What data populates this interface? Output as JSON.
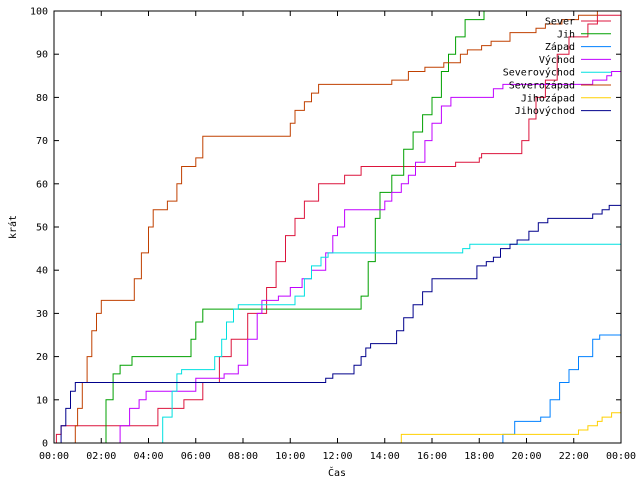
{
  "chart_data": {
    "type": "line",
    "step": true,
    "xlabel": "Čas",
    "ylabel": "krát",
    "xlim": [
      0,
      24
    ],
    "ylim": [
      0,
      100
    ],
    "x_ticks": [
      {
        "v": 0,
        "label": "00:00"
      },
      {
        "v": 2,
        "label": "02:00"
      },
      {
        "v": 4,
        "label": "04:00"
      },
      {
        "v": 6,
        "label": "06:00"
      },
      {
        "v": 8,
        "label": "08:00"
      },
      {
        "v": 10,
        "label": "10:00"
      },
      {
        "v": 12,
        "label": "12:00"
      },
      {
        "v": 14,
        "label": "14:00"
      },
      {
        "v": 16,
        "label": "16:00"
      },
      {
        "v": 18,
        "label": "18:00"
      },
      {
        "v": 20,
        "label": "20:00"
      },
      {
        "v": 22,
        "label": "22:00"
      },
      {
        "v": 24,
        "label": "00:00"
      }
    ],
    "y_ticks": [
      0,
      10,
      20,
      30,
      40,
      50,
      60,
      70,
      80,
      90,
      100
    ],
    "grid": false,
    "legend_position": "top-right",
    "series": [
      {
        "name": "Sever",
        "color": "#dc143c",
        "points": [
          [
            0,
            0
          ],
          [
            0.1,
            2
          ],
          [
            0.3,
            4
          ],
          [
            4.3,
            4
          ],
          [
            4.4,
            8
          ],
          [
            5.5,
            10
          ],
          [
            6.2,
            10
          ],
          [
            6.3,
            14
          ],
          [
            7.0,
            20
          ],
          [
            7.5,
            24
          ],
          [
            8.2,
            30
          ],
          [
            9.0,
            36
          ],
          [
            9.4,
            42
          ],
          [
            9.8,
            48
          ],
          [
            10.2,
            52
          ],
          [
            10.6,
            56
          ],
          [
            11.2,
            60
          ],
          [
            12.3,
            62
          ],
          [
            13.0,
            64
          ],
          [
            16.8,
            64
          ],
          [
            17.0,
            65
          ],
          [
            18.0,
            66
          ],
          [
            18.1,
            67
          ],
          [
            19.6,
            67
          ],
          [
            19.8,
            70
          ],
          [
            20.1,
            75
          ],
          [
            20.4,
            80
          ],
          [
            20.8,
            84
          ],
          [
            21.3,
            90
          ],
          [
            21.8,
            94
          ],
          [
            22.6,
            97
          ],
          [
            23.0,
            99
          ],
          [
            23.5,
            99
          ],
          [
            24,
            100
          ]
        ]
      },
      {
        "name": "Jih",
        "color": "#00a000",
        "points": [
          [
            0,
            0
          ],
          [
            2.0,
            0
          ],
          [
            2.2,
            10
          ],
          [
            2.5,
            16
          ],
          [
            2.8,
            18
          ],
          [
            3.3,
            20
          ],
          [
            5.6,
            20
          ],
          [
            5.8,
            24
          ],
          [
            6.0,
            28
          ],
          [
            6.3,
            31
          ],
          [
            12.6,
            31
          ],
          [
            13.0,
            34
          ],
          [
            13.3,
            42
          ],
          [
            13.6,
            52
          ],
          [
            13.8,
            58
          ],
          [
            14.3,
            62
          ],
          [
            14.8,
            68
          ],
          [
            15.2,
            72
          ],
          [
            15.6,
            76
          ],
          [
            16.0,
            80
          ],
          [
            16.4,
            86
          ],
          [
            16.7,
            90
          ],
          [
            17.0,
            94
          ],
          [
            17.4,
            98
          ],
          [
            18.2,
            100
          ],
          [
            24,
            100
          ]
        ]
      },
      {
        "name": "Západ",
        "color": "#0080ff",
        "points": [
          [
            0,
            0
          ],
          [
            18.8,
            0
          ],
          [
            19.0,
            2
          ],
          [
            19.5,
            5
          ],
          [
            20.6,
            6
          ],
          [
            21.0,
            10
          ],
          [
            21.4,
            14
          ],
          [
            21.8,
            17
          ],
          [
            22.2,
            20
          ],
          [
            22.8,
            24
          ],
          [
            23.1,
            25
          ],
          [
            24,
            25
          ]
        ]
      },
      {
        "name": "Východ",
        "color": "#c000ff",
        "points": [
          [
            0,
            0
          ],
          [
            2.7,
            0
          ],
          [
            2.8,
            4
          ],
          [
            3.2,
            8
          ],
          [
            3.6,
            10
          ],
          [
            3.9,
            12
          ],
          [
            5.8,
            12
          ],
          [
            6.0,
            15
          ],
          [
            7.2,
            16
          ],
          [
            7.8,
            18
          ],
          [
            8.2,
            24
          ],
          [
            8.6,
            30
          ],
          [
            8.8,
            33
          ],
          [
            9.5,
            34
          ],
          [
            10.0,
            36
          ],
          [
            10.5,
            38
          ],
          [
            10.9,
            40
          ],
          [
            11.5,
            44
          ],
          [
            11.8,
            48
          ],
          [
            12.0,
            50
          ],
          [
            12.3,
            54
          ],
          [
            13.7,
            54
          ],
          [
            14.0,
            56
          ],
          [
            14.3,
            58
          ],
          [
            14.7,
            60
          ],
          [
            15.0,
            62
          ],
          [
            15.3,
            65
          ],
          [
            15.7,
            70
          ],
          [
            16.0,
            74
          ],
          [
            16.4,
            78
          ],
          [
            16.8,
            80
          ],
          [
            18.3,
            80
          ],
          [
            18.6,
            82
          ],
          [
            19.0,
            83
          ],
          [
            22.5,
            83
          ],
          [
            22.8,
            84
          ],
          [
            23.4,
            85
          ],
          [
            23.6,
            86
          ],
          [
            24,
            86
          ]
        ]
      },
      {
        "name": "Severovýchod",
        "color": "#00e0e0",
        "points": [
          [
            0,
            0
          ],
          [
            4.4,
            0
          ],
          [
            4.6,
            6
          ],
          [
            5.0,
            12
          ],
          [
            5.2,
            16
          ],
          [
            5.4,
            17
          ],
          [
            6.5,
            17
          ],
          [
            6.8,
            20
          ],
          [
            7.1,
            24
          ],
          [
            7.3,
            28
          ],
          [
            7.6,
            31
          ],
          [
            7.8,
            32
          ],
          [
            9.9,
            32
          ],
          [
            10.2,
            34
          ],
          [
            10.6,
            38
          ],
          [
            10.9,
            41
          ],
          [
            11.3,
            43
          ],
          [
            11.6,
            44
          ],
          [
            16.8,
            44
          ],
          [
            17.3,
            45
          ],
          [
            17.6,
            46
          ],
          [
            24,
            46
          ]
        ]
      },
      {
        "name": "Severozápad",
        "color": "#c04000",
        "points": [
          [
            0,
            0
          ],
          [
            0.8,
            0
          ],
          [
            0.9,
            4
          ],
          [
            1.0,
            8
          ],
          [
            1.2,
            14
          ],
          [
            1.4,
            20
          ],
          [
            1.6,
            26
          ],
          [
            1.8,
            30
          ],
          [
            2.0,
            33
          ],
          [
            3.2,
            33
          ],
          [
            3.4,
            38
          ],
          [
            3.7,
            44
          ],
          [
            4.0,
            50
          ],
          [
            4.2,
            54
          ],
          [
            4.8,
            56
          ],
          [
            5.2,
            60
          ],
          [
            5.4,
            64
          ],
          [
            6.0,
            66
          ],
          [
            6.3,
            71
          ],
          [
            9.8,
            71
          ],
          [
            10.0,
            74
          ],
          [
            10.2,
            77
          ],
          [
            10.6,
            79
          ],
          [
            10.9,
            81
          ],
          [
            11.2,
            83
          ],
          [
            13.8,
            83
          ],
          [
            14.3,
            84
          ],
          [
            15.0,
            86
          ],
          [
            15.7,
            87
          ],
          [
            16.5,
            88
          ],
          [
            17.2,
            90
          ],
          [
            17.5,
            91
          ],
          [
            18.1,
            92
          ],
          [
            18.5,
            93
          ],
          [
            19.3,
            95
          ],
          [
            20.4,
            96
          ],
          [
            20.8,
            97
          ],
          [
            21.5,
            98
          ],
          [
            22.2,
            99
          ],
          [
            23.0,
            100
          ],
          [
            24,
            100
          ]
        ]
      },
      {
        "name": "Jihozápad",
        "color": "#ffd000",
        "points": [
          [
            0,
            0
          ],
          [
            14.6,
            0
          ],
          [
            14.7,
            2
          ],
          [
            22.0,
            2
          ],
          [
            22.2,
            3
          ],
          [
            22.6,
            4
          ],
          [
            23.0,
            5
          ],
          [
            23.2,
            6
          ],
          [
            23.6,
            7
          ],
          [
            24,
            7
          ]
        ]
      },
      {
        "name": "Jihovýchod",
        "color": "#00008b",
        "points": [
          [
            0,
            0
          ],
          [
            0.3,
            4
          ],
          [
            0.5,
            8
          ],
          [
            0.7,
            12
          ],
          [
            0.9,
            14
          ],
          [
            11.3,
            14
          ],
          [
            11.5,
            15
          ],
          [
            11.8,
            16
          ],
          [
            12.5,
            16
          ],
          [
            12.7,
            18
          ],
          [
            13.0,
            20
          ],
          [
            13.2,
            22
          ],
          [
            13.4,
            23
          ],
          [
            14.3,
            23
          ],
          [
            14.5,
            26
          ],
          [
            14.8,
            29
          ],
          [
            15.2,
            32
          ],
          [
            15.6,
            35
          ],
          [
            16.0,
            38
          ],
          [
            17.7,
            38
          ],
          [
            17.9,
            41
          ],
          [
            18.3,
            42
          ],
          [
            18.6,
            43
          ],
          [
            18.9,
            45
          ],
          [
            19.3,
            46
          ],
          [
            19.6,
            47
          ],
          [
            20.1,
            49
          ],
          [
            20.5,
            51
          ],
          [
            20.9,
            52
          ],
          [
            22.8,
            53
          ],
          [
            23.2,
            54
          ],
          [
            23.5,
            55
          ],
          [
            24,
            55
          ]
        ]
      }
    ]
  }
}
